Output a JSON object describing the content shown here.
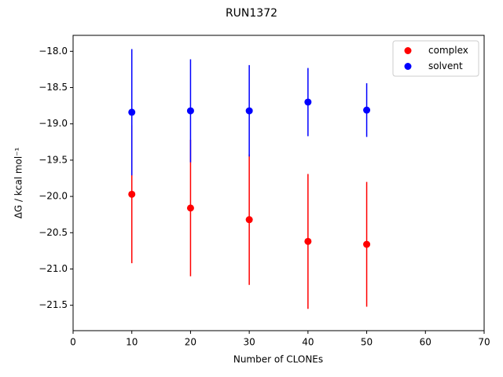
{
  "chart_data": {
    "type": "scatter",
    "title": "RUN1372",
    "x_label": "Number of CLONEs",
    "y_label": "ΔG / kcal mol⁻¹",
    "x": [
      10,
      20,
      30,
      40,
      50
    ],
    "series": [
      {
        "name": "complex",
        "color": "#ff0000",
        "values": [
          -19.97,
          -20.16,
          -20.32,
          -20.62,
          -20.66
        ],
        "errors": [
          0.95,
          0.94,
          0.9,
          0.93,
          0.86
        ]
      },
      {
        "name": "solvent",
        "color": "#0000ff",
        "values": [
          -18.84,
          -18.82,
          -18.82,
          -18.7,
          -18.81
        ],
        "errors": [
          0.87,
          0.71,
          0.63,
          0.47,
          0.37
        ]
      }
    ],
    "xlim": [
      0,
      70
    ],
    "xticks": [
      0,
      10,
      20,
      30,
      40,
      50,
      60,
      70
    ],
    "ylim": [
      -21.85,
      -17.78
    ],
    "yticks": [
      {
        "value": -21.5,
        "label": "−21.5"
      },
      {
        "value": -21.0,
        "label": "−21.0"
      },
      {
        "value": -20.5,
        "label": "−20.5"
      },
      {
        "value": -20.0,
        "label": "−20.0"
      },
      {
        "value": -19.5,
        "label": "−19.5"
      },
      {
        "value": -19.0,
        "label": "−19.0"
      },
      {
        "value": -18.5,
        "label": "−18.5"
      },
      {
        "value": -18.0,
        "label": "−18.0"
      }
    ],
    "legend": "upper right"
  }
}
